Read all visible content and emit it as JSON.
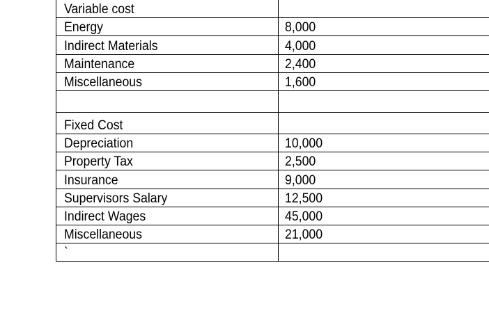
{
  "table": {
    "rows": [
      {
        "label": "Variable cost",
        "value": ""
      },
      {
        "label": "Energy",
        "value": "8,000"
      },
      {
        "label": "Indirect Materials",
        "value": "4,000"
      },
      {
        "label": "Maintenance",
        "value": "2,400"
      },
      {
        "label": "Miscellaneous",
        "value": "1,600"
      },
      {
        "label": "",
        "value": ""
      },
      {
        "label": "Fixed Cost",
        "value": ""
      },
      {
        "label": "Depreciation",
        "value": "10,000"
      },
      {
        "label": "Property Tax",
        "value": "2,500"
      },
      {
        "label": "Insurance",
        "value": "9,000"
      },
      {
        "label": "Supervisors Salary",
        "value": "12,500"
      },
      {
        "label": "Indirect Wages",
        "value": "45,000"
      },
      {
        "label": "Miscellaneous",
        "value": "21,000"
      },
      {
        "label": "`",
        "value": ""
      }
    ]
  }
}
